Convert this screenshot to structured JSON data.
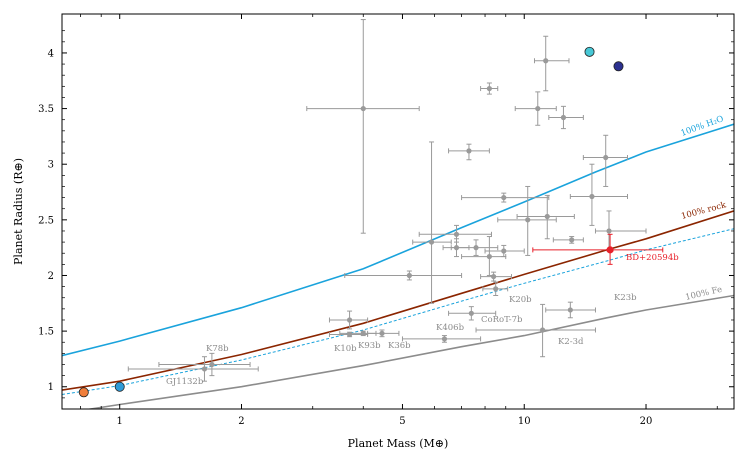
{
  "chart_data": {
    "type": "scatter",
    "xlabel": "Planet Mass (M⊕)",
    "ylabel": "Planet Radius (R⊕)",
    "xscale": "log",
    "xlim": [
      0.72,
      33
    ],
    "ylim": [
      0.8,
      4.35
    ],
    "xticks": [
      {
        "value": 1,
        "label": "1"
      },
      {
        "value": 2,
        "label": "2"
      },
      {
        "value": 5,
        "label": "5"
      },
      {
        "value": 10,
        "label": "10"
      },
      {
        "value": 20,
        "label": "20"
      }
    ],
    "yticks": [
      {
        "value": 1,
        "label": "1"
      },
      {
        "value": 1.5,
        "label": "1.5"
      },
      {
        "value": 2,
        "label": "2"
      },
      {
        "value": 2.5,
        "label": "2.5"
      },
      {
        "value": 3,
        "label": "3"
      },
      {
        "value": 3.5,
        "label": "3.5"
      },
      {
        "value": 4,
        "label": "4"
      }
    ],
    "curves": [
      {
        "name": "100% H2O",
        "label": "100% H₂O",
        "color": "#1aa3dc",
        "dashed": false,
        "points": [
          [
            0.72,
            1.28
          ],
          [
            1,
            1.41
          ],
          [
            2,
            1.71
          ],
          [
            4,
            2.06
          ],
          [
            7,
            2.43
          ],
          [
            10,
            2.66
          ],
          [
            15,
            2.93
          ],
          [
            20,
            3.11
          ],
          [
            33,
            3.36
          ]
        ]
      },
      {
        "name": "100% rock",
        "label": "100% rock",
        "color": "#8b2500",
        "dashed": false,
        "points": [
          [
            0.72,
            0.97
          ],
          [
            1,
            1.05
          ],
          [
            2,
            1.29
          ],
          [
            4,
            1.57
          ],
          [
            7,
            1.84
          ],
          [
            10,
            2.01
          ],
          [
            16,
            2.23
          ],
          [
            20,
            2.33
          ],
          [
            33,
            2.58
          ]
        ]
      },
      {
        "name": "rock (dashed)",
        "label": "",
        "color": "#1aa3dc",
        "dashed": true,
        "points": [
          [
            0.72,
            0.93
          ],
          [
            1,
            1.01
          ],
          [
            2,
            1.24
          ],
          [
            4,
            1.51
          ],
          [
            7,
            1.77
          ],
          [
            10,
            1.93
          ],
          [
            16,
            2.13
          ],
          [
            20,
            2.23
          ],
          [
            33,
            2.42
          ]
        ]
      },
      {
        "name": "100% Fe",
        "label": "100% Fe",
        "color": "#8c8c8c",
        "dashed": false,
        "points": [
          [
            0.72,
            0.76
          ],
          [
            1,
            0.84
          ],
          [
            2,
            1.0
          ],
          [
            4,
            1.19
          ],
          [
            7,
            1.36
          ],
          [
            10,
            1.46
          ],
          [
            16,
            1.62
          ],
          [
            20,
            1.69
          ],
          [
            33,
            1.82
          ]
        ]
      }
    ],
    "labeled_planets": [
      {
        "label": "K78b",
        "x": 1.69,
        "y": 1.2,
        "xerr": [
          1.25,
          2.1
        ],
        "yerr": [
          1.1,
          1.3
        ]
      },
      {
        "label": "GJ1132b",
        "x": 1.62,
        "y": 1.16,
        "xerr": [
          1.05,
          2.2
        ],
        "yerr": [
          1.05,
          1.27
        ]
      },
      {
        "label": "K10b",
        "x": 3.7,
        "y": 1.47,
        "xerr": [
          3.3,
          4.1
        ],
        "yerr": [
          1.45,
          1.49
        ]
      },
      {
        "label": "K93b",
        "x": 4.0,
        "y": 1.48,
        "xerr": [
          3.5,
          4.3
        ],
        "yerr": [
          1.46,
          1.5
        ]
      },
      {
        "label": "K36b",
        "x": 4.45,
        "y": 1.48,
        "xerr": [
          4.1,
          4.9
        ],
        "yerr": [
          1.45,
          1.51
        ]
      },
      {
        "label": "K406b",
        "x": 6.35,
        "y": 1.43,
        "xerr": [
          5.0,
          7.8
        ],
        "yerr": [
          1.4,
          1.46
        ]
      },
      {
        "label": "CoRoT-7b",
        "x": 7.4,
        "y": 1.66,
        "xerr": [
          6.5,
          8.5
        ],
        "yerr": [
          1.6,
          1.72
        ]
      },
      {
        "label": "K20b",
        "x": 8.5,
        "y": 1.88,
        "xerr": [
          7.9,
          9.1
        ],
        "yerr": [
          1.82,
          1.94
        ]
      },
      {
        "label": "K23b",
        "x": 13.0,
        "y": 1.69,
        "xerr": [
          11.3,
          15.0
        ],
        "yerr": [
          1.62,
          1.76
        ]
      },
      {
        "label": "K2-3d",
        "x": 11.1,
        "y": 1.51,
        "xerr": [
          7.6,
          15.0
        ],
        "yerr": [
          1.27,
          1.74
        ]
      }
    ],
    "other_planets": [
      {
        "x": 4.0,
        "y": 3.5,
        "xerr": [
          2.9,
          5.5
        ],
        "yerr": [
          2.38,
          4.3
        ]
      },
      {
        "x": 5.9,
        "y": 2.3,
        "xerr": [
          5.3,
          6.6
        ],
        "yerr": [
          1.75,
          3.2
        ]
      },
      {
        "x": 7.3,
        "y": 3.12,
        "xerr": [
          6.5,
          8.2
        ],
        "yerr": [
          3.04,
          3.18
        ]
      },
      {
        "x": 8.2,
        "y": 3.68,
        "xerr": [
          7.8,
          8.6
        ],
        "yerr": [
          3.63,
          3.73
        ]
      },
      {
        "x": 11.3,
        "y": 3.93,
        "xerr": [
          10.6,
          12.9
        ],
        "yerr": [
          3.66,
          4.15
        ]
      },
      {
        "x": 10.8,
        "y": 3.5,
        "xerr": [
          9.5,
          12.0
        ],
        "yerr": [
          3.35,
          3.65
        ]
      },
      {
        "x": 12.5,
        "y": 3.42,
        "xerr": [
          11.5,
          14.0
        ],
        "yerr": [
          3.32,
          3.52
        ]
      },
      {
        "x": 15.9,
        "y": 3.06,
        "xerr": [
          14.0,
          18.0
        ],
        "yerr": [
          2.8,
          3.26
        ]
      },
      {
        "x": 8.9,
        "y": 2.7,
        "xerr": [
          7.0,
          11.5
        ],
        "yerr": [
          2.66,
          2.74
        ]
      },
      {
        "x": 10.2,
        "y": 2.5,
        "xerr": [
          8.6,
          12.0
        ],
        "yerr": [
          2.18,
          2.8
        ]
      },
      {
        "x": 11.4,
        "y": 2.53,
        "xerr": [
          9.6,
          13.3
        ],
        "yerr": [
          2.33,
          2.72
        ]
      },
      {
        "x": 14.7,
        "y": 2.71,
        "xerr": [
          13.0,
          18.0
        ],
        "yerr": [
          2.45,
          3.0
        ]
      },
      {
        "x": 13.1,
        "y": 2.32,
        "xerr": [
          11.8,
          14.0
        ],
        "yerr": [
          2.29,
          2.35
        ]
      },
      {
        "x": 16.2,
        "y": 2.4,
        "xerr": [
          15.0,
          20.0
        ],
        "yerr": [
          2.22,
          2.58
        ]
      },
      {
        "x": 7.6,
        "y": 2.25,
        "xerr": [
          6.6,
          8.6
        ],
        "yerr": [
          2.18,
          2.32
        ]
      },
      {
        "x": 8.2,
        "y": 2.17,
        "xerr": [
          7.0,
          9.0
        ],
        "yerr": [
          2.0,
          2.35
        ]
      },
      {
        "x": 8.9,
        "y": 2.22,
        "xerr": [
          8.0,
          10.0
        ],
        "yerr": [
          2.17,
          2.27
        ]
      },
      {
        "x": 5.2,
        "y": 2.0,
        "xerr": [
          3.6,
          7.0
        ],
        "yerr": [
          1.96,
          2.04
        ]
      },
      {
        "x": 3.7,
        "y": 1.6,
        "xerr": [
          3.3,
          4.1
        ],
        "yerr": [
          1.52,
          1.68
        ]
      },
      {
        "x": 8.4,
        "y": 1.99,
        "xerr": [
          7.8,
          9.3
        ],
        "yerr": [
          1.95,
          2.03
        ]
      },
      {
        "x": 6.8,
        "y": 2.37,
        "xerr": [
          5.5,
          8.3
        ],
        "yerr": [
          2.3,
          2.45
        ]
      },
      {
        "x": 6.8,
        "y": 2.25,
        "xerr": [
          6.3,
          7.3
        ],
        "yerr": [
          2.17,
          2.33
        ]
      }
    ],
    "highlight": {
      "label": "BD+20594b",
      "x": 16.3,
      "y": 2.23,
      "xerr": [
        10.5,
        22.0
      ],
      "yerr": [
        2.1,
        2.37
      ],
      "color": "#e8202a"
    },
    "solar_system": [
      {
        "name": "Venus",
        "x": 0.815,
        "y": 0.95,
        "color": "#f07f3c"
      },
      {
        "name": "Earth",
        "x": 1.0,
        "y": 1.0,
        "color": "#2f9bd8"
      },
      {
        "name": "Uranus",
        "x": 14.5,
        "y": 4.01,
        "color": "#47c8d6"
      },
      {
        "name": "Neptune",
        "x": 17.1,
        "y": 3.88,
        "color": "#2c3190"
      }
    ]
  }
}
